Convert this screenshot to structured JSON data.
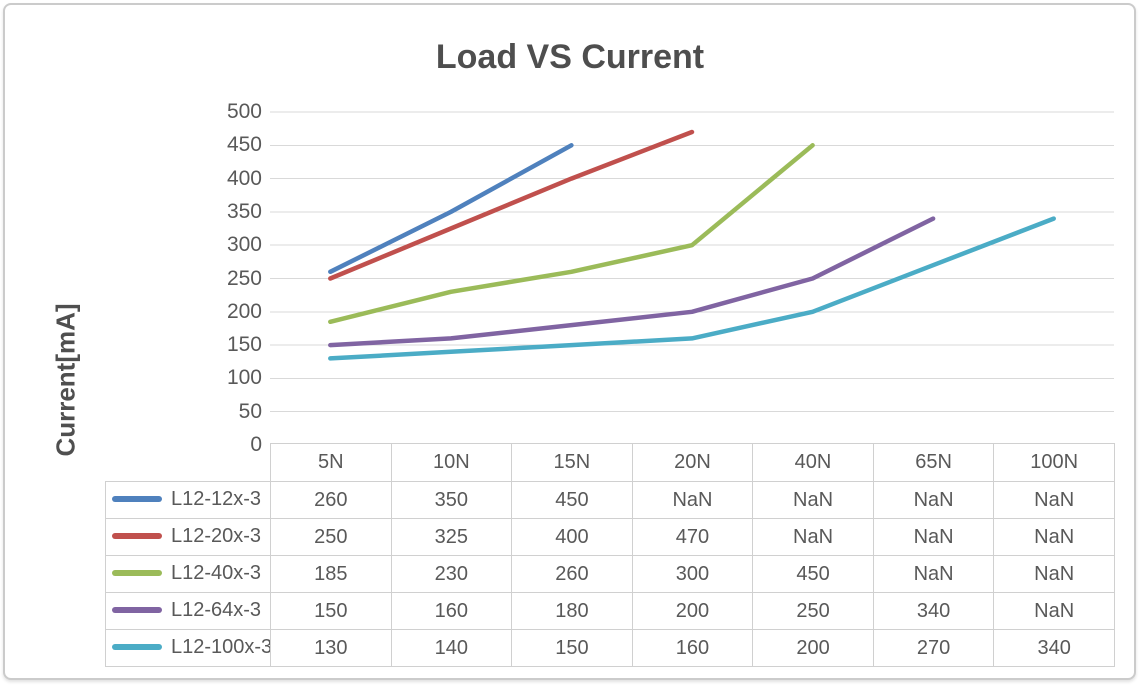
{
  "window": {
    "background": "#ffffff",
    "frame_border_color": "#cbcbcb"
  },
  "chart_data": {
    "type": "line",
    "title": "Load VS Current",
    "xlabel": "",
    "ylabel": "Current[mA]",
    "categories": [
      "5N",
      "10N",
      "15N",
      "20N",
      "40N",
      "65N",
      "100N"
    ],
    "series": [
      {
        "name": "L12-12x-3",
        "color": "#4F81BD",
        "values": [
          260,
          350,
          450,
          null,
          null,
          null,
          null
        ]
      },
      {
        "name": "L12-20x-3",
        "color": "#C0504D",
        "values": [
          250,
          325,
          400,
          470,
          null,
          null,
          null
        ]
      },
      {
        "name": "L12-40x-3",
        "color": "#9BBB59",
        "values": [
          185,
          230,
          260,
          300,
          450,
          null,
          null
        ]
      },
      {
        "name": "L12-64x-3",
        "color": "#8064A2",
        "values": [
          150,
          160,
          180,
          200,
          250,
          340,
          null
        ]
      },
      {
        "name": "L12-100x-3",
        "color": "#4BACC6",
        "values": [
          130,
          140,
          150,
          160,
          200,
          270,
          340
        ]
      }
    ],
    "ylim": [
      0,
      500
    ],
    "ytick_step": 50,
    "grid": true,
    "gridline_color": "#d9d9d9",
    "nan_label": "NaN",
    "legend_position": "data-table-left-column",
    "data_table_shown": true
  },
  "styles": {
    "title_color": "#4e4e4e",
    "axis_text_color": "#595959",
    "table_border_color": "#d0d0d0",
    "table_text_color": "#595959",
    "line_width": 4.5
  }
}
